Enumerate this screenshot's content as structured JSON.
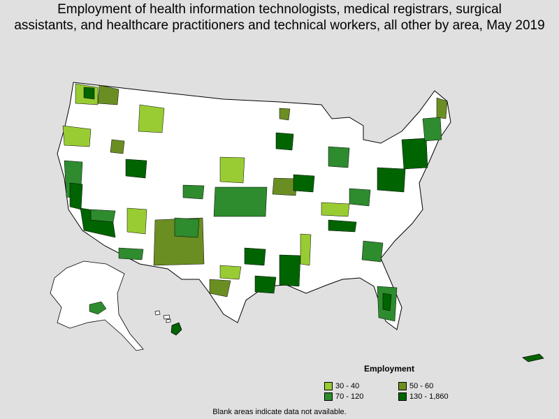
{
  "title_line1": "Employment of health information technologists, medical registrars, surgical",
  "title_line2": "assistants, and healthcare practitioners and technical workers, all other by area, May 2019",
  "legend": {
    "title": "Employment",
    "items": [
      {
        "label": "30 - 40",
        "color": "#99cc33"
      },
      {
        "label": "50 - 60",
        "color": "#6b8e23"
      },
      {
        "label": "70 - 120",
        "color": "#2e8b2e"
      },
      {
        "label": "130 - 1,860",
        "color": "#006400"
      }
    ]
  },
  "footnote": "Blank areas indicate data not available."
}
